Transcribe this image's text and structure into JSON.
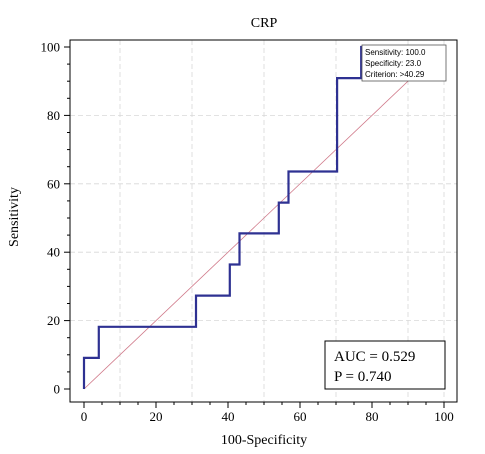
{
  "chart_data": {
    "type": "line",
    "title": "CRP",
    "xlabel": "100-Specificity",
    "ylabel": "Sensitivity",
    "xlim": [
      0,
      100
    ],
    "ylim": [
      0,
      100
    ],
    "xticks": [
      "0",
      "20",
      "40",
      "60",
      "80",
      "100"
    ],
    "yticks": [
      "0",
      "20",
      "40",
      "60",
      "80",
      "100"
    ],
    "grid": true,
    "colors": {
      "roc": "#2e3192",
      "diagonal": "#d07a8a",
      "grid": "#d8d8d8"
    },
    "series": [
      {
        "points": [
          [
            0,
            0
          ],
          [
            0,
            9.1
          ],
          [
            4.1,
            9.1
          ],
          [
            4.1,
            18.2
          ],
          [
            31.1,
            18.2
          ],
          [
            31.1,
            27.3
          ],
          [
            40.5,
            27.3
          ],
          [
            40.5,
            36.4
          ],
          [
            43.2,
            36.4
          ],
          [
            43.2,
            45.5
          ],
          [
            54.1,
            45.5
          ],
          [
            54.1,
            54.5
          ],
          [
            56.8,
            54.5
          ],
          [
            56.8,
            63.6
          ],
          [
            70.3,
            63.6
          ],
          [
            70.3,
            90.9
          ],
          [
            77.0,
            90.9
          ],
          [
            77.0,
            100
          ],
          [
            100,
            100
          ]
        ]
      },
      {
        "points": [
          [
            0,
            0
          ],
          [
            100,
            100
          ]
        ]
      }
    ],
    "criterion_box": {
      "sensitivity": "Sensitivity: 100.0",
      "specificity": "Specificity: 23.0",
      "criterion": "Criterion: >40.29"
    },
    "stats_box": {
      "auc": "AUC = 0.529",
      "p": "P = 0.740"
    }
  }
}
